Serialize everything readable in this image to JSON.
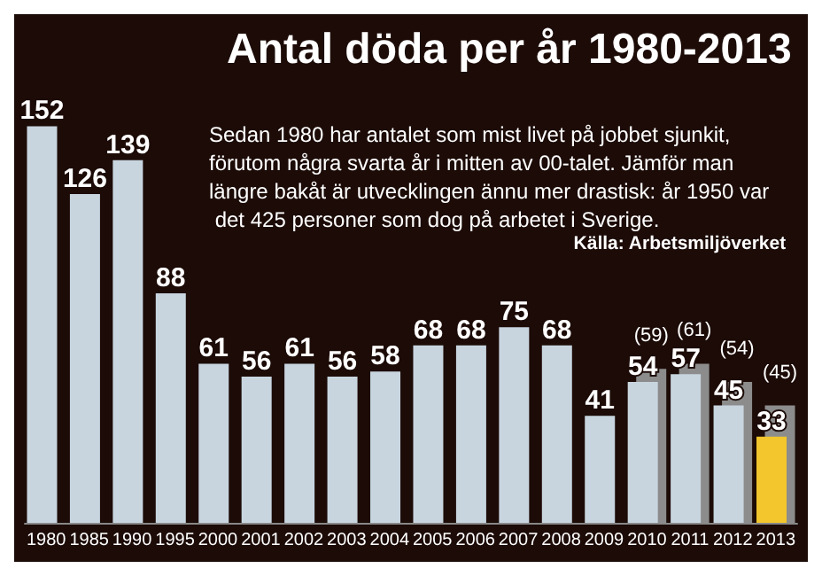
{
  "chart_data": {
    "type": "bar",
    "title": "Antal döda per år 1980-2013",
    "subtitle": "Sedan 1980 har antalet som mist livet på jobbet sjunkit, förutom några svarta år i mitten av 00-talet. Jämför man längre bakåt är utvecklingen ännu mer drastisk: år 1950 var det 425 personer som dog på arbetet i Sverige.",
    "annotations": [
      "Källa: Arbetsmiljöverket"
    ],
    "categories": [
      "1980",
      "1985",
      "1990",
      "1995",
      "2000",
      "2001",
      "2002",
      "2003",
      "2004",
      "2005",
      "2006",
      "2007",
      "2008",
      "2009",
      "2010",
      "2011",
      "2012",
      "2013"
    ],
    "series": [
      {
        "color": "#c8d5df",
        "colors": [
          "#c8d5df",
          "#c8d5df",
          "#c8d5df",
          "#c8d5df",
          "#c8d5df",
          "#c8d5df",
          "#c8d5df",
          "#c8d5df",
          "#c8d5df",
          "#c8d5df",
          "#c8d5df",
          "#c8d5df",
          "#c8d5df",
          "#c8d5df",
          "#c8d5df",
          "#c8d5df",
          "#c8d5df",
          "#f2c62c"
        ],
        "values": [
          152,
          126,
          139,
          88,
          61,
          56,
          61,
          56,
          58,
          68,
          68,
          75,
          68,
          41,
          54,
          57,
          45,
          33
        ]
      },
      {
        "color": "#8c8c8c",
        "values": [
          null,
          null,
          null,
          null,
          null,
          null,
          null,
          null,
          null,
          null,
          null,
          null,
          null,
          null,
          59,
          61,
          54,
          45
        ],
        "value_labels": [
          null,
          null,
          null,
          null,
          null,
          null,
          null,
          null,
          null,
          null,
          null,
          null,
          null,
          null,
          "(59)",
          "(61)",
          "(54)",
          "(45)"
        ]
      }
    ],
    "data_labels": true,
    "tick_labels": "x",
    "grid": false
  }
}
